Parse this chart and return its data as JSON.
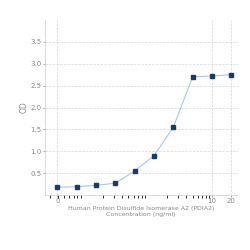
{
  "x": [
    0.039,
    0.078125,
    0.15625,
    0.3125,
    0.625,
    1.25,
    2.5,
    5,
    10,
    20
  ],
  "y": [
    0.175,
    0.19,
    0.22,
    0.27,
    0.55,
    0.9,
    1.55,
    2.7,
    2.72,
    2.75
  ],
  "line_color": "#a8c8e8",
  "marker_color": "#1a3a6b",
  "marker_style": "s",
  "marker_size": 2.5,
  "linewidth": 0.8,
  "xlabel_line1": "Human Protein Disulfide Isomerase A2 (PDIA2)",
  "xlabel_line2": "Concentration (ng/ml)",
  "ylabel": "OD",
  "xlim_log": [
    -1.6,
    1.45
  ],
  "ylim": [
    0,
    4.0
  ],
  "yticks": [
    0.5,
    1.0,
    1.5,
    2.0,
    2.5,
    3.0,
    3.5
  ],
  "xtick_vals": [
    0.039,
    10,
    20
  ],
  "xtick_labels": [
    "0",
    "10",
    "20"
  ],
  "grid_color": "#d8d8d8",
  "bg_color": "#ffffff",
  "xlabel_fontsize": 4.5,
  "ylabel_fontsize": 5.5,
  "tick_fontsize": 5.0
}
